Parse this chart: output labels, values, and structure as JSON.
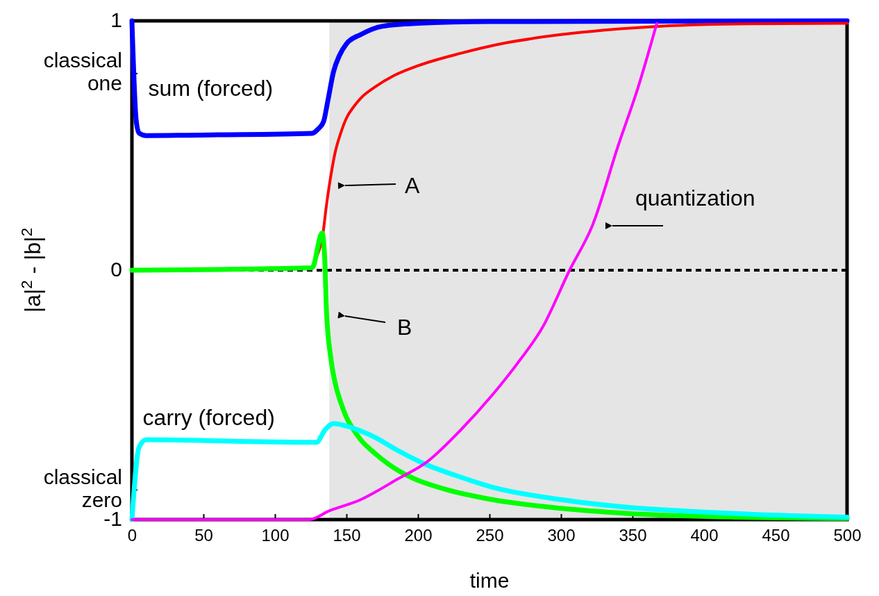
{
  "chart_data": {
    "type": "line",
    "xlabel": "time",
    "ylabel": "|a|$^{2}$ - |b|$^{2}$",
    "xlim": [
      0,
      500
    ],
    "xticks": [
      0,
      50,
      100,
      150,
      200,
      250,
      300,
      350,
      400,
      450,
      500
    ],
    "ylim": [
      -1,
      1
    ],
    "yticks": [
      -1,
      {
        "value": -0.88,
        "label": "classical zero"
      },
      0,
      {
        "value": 0.79,
        "label": "classical one"
      },
      1
    ],
    "grid": false,
    "marker": "none",
    "line_style": "solid",
    "ref_lines": [
      {
        "axis": "y",
        "value": 0,
        "line_style": "dashed",
        "color": "#000000"
      }
    ],
    "bands": [
      {
        "axis": "x",
        "from": 138,
        "to": 500,
        "color": "#e5e5e5"
      }
    ],
    "annotations": [
      {
        "text": "sum (forced)",
        "x": 60,
        "y": 0.546
      },
      {
        "text": "carry (forced)",
        "x": 60,
        "y": -0.69
      },
      "A",
      "B",
      "quantization"
    ],
    "series": [
      {
        "color": "#0000ff",
        "x": [
          0,
          3,
          5,
          10,
          60,
          126,
          130,
          134,
          137,
          141,
          145,
          150,
          160,
          175,
          200,
          250,
          500
        ],
        "values": [
          1,
          0.6,
          0.55,
          0.54,
          0.543,
          0.549,
          0.565,
          0.596,
          0.68,
          0.797,
          0.86,
          0.908,
          0.945,
          0.978,
          0.99,
          0.997,
          1
        ]
      },
      {
        "color": "#ff0000",
        "x": [
          129.6,
          133.5,
          136,
          138,
          140,
          142,
          146,
          150,
          155,
          160,
          170,
          183,
          200,
          230,
          260,
          299,
          368,
          430,
          500
        ],
        "values": [
          0.06,
          0.145,
          0.26,
          0.34,
          0.41,
          0.47,
          0.55,
          0.61,
          0.655,
          0.69,
          0.735,
          0.78,
          0.82,
          0.87,
          0.91,
          0.944,
          0.978,
          0.988,
          0.99
        ]
      },
      {
        "color": "#00ff00",
        "x": [
          0,
          126,
          133,
          135,
          136,
          139,
          142,
          146,
          150,
          155,
          160,
          170,
          180,
          195,
          220,
          252,
          300,
          345,
          420,
          500
        ],
        "values": [
          0,
          0.01,
          0.15,
          0.02,
          -0.16,
          -0.35,
          -0.45,
          -0.53,
          -0.59,
          -0.64,
          -0.68,
          -0.735,
          -0.78,
          -0.83,
          -0.88,
          -0.92,
          -0.955,
          -0.975,
          -0.99,
          -0.995
        ]
      },
      {
        "color": "#00ffff",
        "x": [
          0,
          5,
          10,
          125,
          129,
          135,
          141,
          150,
          160,
          170,
          185,
          206,
          230,
          252,
          300,
          345,
          400,
          437,
          500
        ],
        "values": [
          -1,
          -0.71,
          -0.68,
          -0.69,
          -0.69,
          -0.64,
          -0.615,
          -0.625,
          -0.645,
          -0.67,
          -0.72,
          -0.78,
          -0.83,
          -0.87,
          -0.92,
          -0.95,
          -0.97,
          -0.98,
          -0.99
        ]
      },
      {
        "color": "#ff00ff",
        "x": [
          0,
          124,
          138,
          160,
          170,
          185,
          206,
          230,
          252,
          270,
          287,
          306,
          322,
          340,
          354,
          367
        ],
        "values": [
          -1,
          -1,
          -0.965,
          -0.92,
          -0.89,
          -0.84,
          -0.77,
          -0.64,
          -0.5,
          -0.37,
          -0.23,
          0,
          0.18,
          0.5,
          0.735,
          0.99
        ]
      }
    ]
  }
}
